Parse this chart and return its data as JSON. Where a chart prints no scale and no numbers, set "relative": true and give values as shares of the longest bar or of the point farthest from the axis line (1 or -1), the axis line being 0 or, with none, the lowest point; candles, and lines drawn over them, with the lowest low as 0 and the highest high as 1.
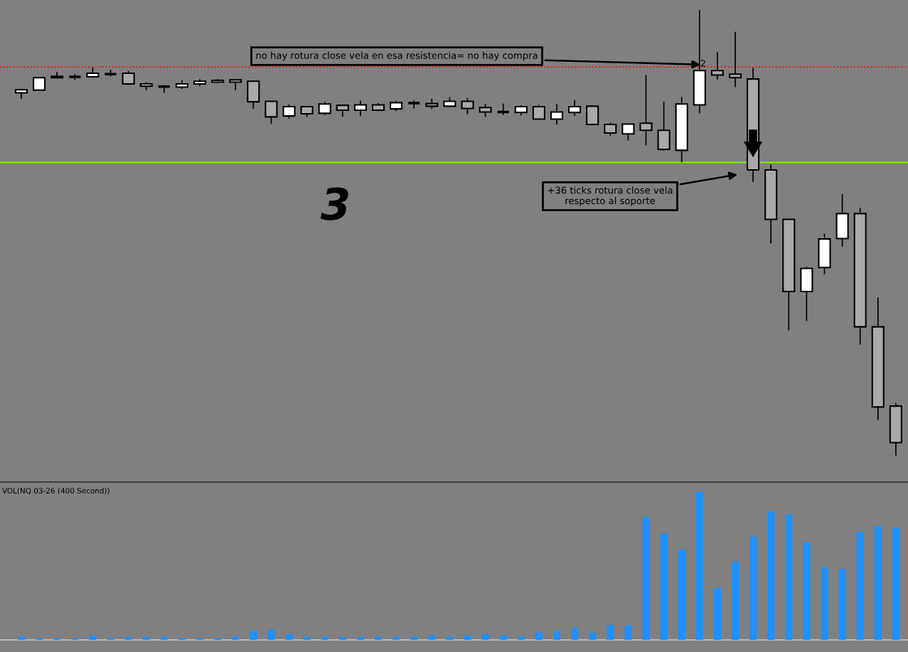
{
  "chart_data": [
    {
      "type": "candlestick",
      "relative": true,
      "categories": [
        null,
        null,
        null,
        null,
        null,
        null,
        null,
        null,
        null,
        null,
        null,
        null,
        null,
        null,
        null,
        null,
        null,
        null,
        null,
        null,
        null,
        null,
        null,
        null,
        null,
        null,
        null,
        null,
        null,
        null,
        null,
        null,
        null,
        null,
        null,
        null,
        null,
        null,
        null,
        null,
        null,
        null,
        null,
        null,
        null,
        null,
        null,
        null,
        null,
        null
      ],
      "ohlc": [
        [
          0.814,
          0.822,
          0.801,
          0.821
        ],
        [
          0.82,
          0.848,
          0.819,
          0.848
        ],
        [
          0.848,
          0.861,
          0.846,
          0.851
        ],
        [
          0.85,
          0.856,
          0.843,
          0.85
        ],
        [
          0.85,
          0.871,
          0.848,
          0.858
        ],
        [
          0.856,
          0.866,
          0.851,
          0.856
        ],
        [
          0.858,
          0.863,
          0.832,
          0.834
        ],
        [
          0.829,
          0.838,
          0.82,
          0.834
        ],
        [
          0.828,
          0.829,
          0.814,
          0.828
        ],
        [
          0.827,
          0.842,
          0.823,
          0.834
        ],
        [
          0.834,
          0.845,
          0.829,
          0.84
        ],
        [
          0.838,
          0.845,
          0.836,
          0.842
        ],
        [
          0.838,
          0.843,
          0.82,
          0.843
        ],
        [
          0.84,
          0.842,
          0.778,
          0.794
        ],
        [
          0.795,
          0.795,
          0.744,
          0.76
        ],
        [
          0.762,
          0.788,
          0.756,
          0.783
        ],
        [
          0.783,
          0.783,
          0.76,
          0.767
        ],
        [
          0.768,
          0.794,
          0.764,
          0.789
        ],
        [
          0.786,
          0.788,
          0.76,
          0.775
        ],
        [
          0.775,
          0.796,
          0.762,
          0.787
        ],
        [
          0.787,
          0.791,
          0.773,
          0.775
        ],
        [
          0.778,
          0.796,
          0.773,
          0.792
        ],
        [
          0.791,
          0.797,
          0.779,
          0.791
        ],
        [
          0.79,
          0.801,
          0.778,
          0.784
        ],
        [
          0.784,
          0.804,
          0.781,
          0.795
        ],
        [
          0.795,
          0.802,
          0.766,
          0.779
        ],
        [
          0.781,
          0.789,
          0.76,
          0.771
        ],
        [
          0.771,
          0.79,
          0.764,
          0.771
        ],
        [
          0.77,
          0.786,
          0.763,
          0.783
        ],
        [
          0.783,
          0.787,
          0.754,
          0.755
        ],
        [
          0.755,
          0.789,
          0.743,
          0.771
        ],
        [
          0.77,
          0.798,
          0.762,
          0.783
        ],
        [
          0.784,
          0.784,
          0.743,
          0.743
        ],
        [
          0.743,
          0.747,
          0.718,
          0.724
        ],
        [
          0.722,
          0.744,
          0.707,
          0.744
        ],
        [
          0.746,
          0.854,
          0.696,
          0.73
        ],
        [
          0.73,
          0.794,
          0.684,
          0.687
        ],
        [
          0.685,
          0.805,
          0.658,
          0.789
        ],
        [
          0.787,
          1,
          0.768,
          0.864
        ],
        [
          0.864,
          0.905,
          0.844,
          0.854
        ],
        [
          0.856,
          0.951,
          0.827,
          0.848
        ],
        [
          0.845,
          0.87,
          0.614,
          0.641
        ],
        [
          0.641,
          0.653,
          0.476,
          0.53
        ],
        [
          0.53,
          0.532,
          0.281,
          0.368
        ],
        [
          0.368,
          0.424,
          0.302,
          0.42
        ],
        [
          0.422,
          0.498,
          0.407,
          0.486
        ],
        [
          0.487,
          0.587,
          0.469,
          0.543
        ],
        [
          0.543,
          0.556,
          0.249,
          0.289
        ],
        [
          0.289,
          0.355,
          0.08,
          0.109
        ],
        [
          0.111,
          0.118,
          0,
          0.029
        ]
      ],
      "colors": [
        "#ffffff",
        "#ffffff",
        "#ffffff",
        "#000000",
        "#ffffff",
        "#000000",
        "#a9a9a9",
        "#ffffff",
        "#000000",
        "#ffffff",
        "#ffffff",
        "#ffffff",
        "#ffffff",
        "#a9a9a9",
        "#a9a9a9",
        "#ffffff",
        "#a9a9a9",
        "#ffffff",
        "#a9a9a9",
        "#ffffff",
        "#a9a9a9",
        "#ffffff",
        "#000000",
        "#a9a9a9",
        "#ffffff",
        "#a9a9a9",
        "#a9a9a9",
        "#000000",
        "#ffffff",
        "#a9a9a9",
        "#ffffff",
        "#ffffff",
        "#a9a9a9",
        "#a9a9a9",
        "#ffffff",
        "#a9a9a9",
        "#a9a9a9",
        "#ffffff",
        "#ffffff",
        "#a9a9a9",
        "#a9a9a9",
        "#a9a9a9",
        "#a9a9a9",
        "#a9a9a9",
        "#ffffff",
        "#ffffff",
        "#ffffff",
        "#a9a9a9",
        "#a9a9a9",
        "#a9a9a9"
      ],
      "ref_lines": [
        {
          "axis": "y",
          "value": 0.872,
          "color": "#ff0000",
          "line_style": "dotted"
        },
        {
          "axis": "y",
          "value": 0.658,
          "color": "#7cfc00",
          "line_style": "solid"
        }
      ],
      "annotations": [
        "no hay rotura close vela en esa resistencia= no hay compra",
        "+36 ticks rotura close vela\nrespecto al soporte",
        "3",
        "2"
      ]
    },
    {
      "type": "bar",
      "relative": true,
      "title": "VOL(NQ 03-26 (400 Second))",
      "color": "#1e90ff",
      "categories": [
        null,
        null,
        null,
        null,
        null,
        null,
        null,
        null,
        null,
        null,
        null,
        null,
        null,
        null,
        null,
        null,
        null,
        null,
        null,
        null,
        null,
        null,
        null,
        null,
        null,
        null,
        null,
        null,
        null,
        null,
        null,
        null,
        null,
        null,
        null,
        null,
        null,
        null,
        null,
        null,
        null,
        null,
        null,
        null,
        null,
        null,
        null,
        null,
        null,
        null
      ],
      "values": [
        0.02,
        0.01,
        0.01,
        0.01,
        0.03,
        0.01,
        0.02,
        0.02,
        0.02,
        0.01,
        0.01,
        0.01,
        0.02,
        0.06,
        0.07,
        0.04,
        0.02,
        0.02,
        0.02,
        0.02,
        0.02,
        0.02,
        0.02,
        0.03,
        0.02,
        0.03,
        0.04,
        0.03,
        0.02,
        0.05,
        0.06,
        0.08,
        0.05,
        0.1,
        0.1,
        0.83,
        0.72,
        0.61,
        1,
        0.35,
        0.53,
        0.7,
        0.87,
        0.85,
        0.66,
        0.49,
        0.48,
        0.73,
        0.77,
        0.76
      ]
    }
  ]
}
